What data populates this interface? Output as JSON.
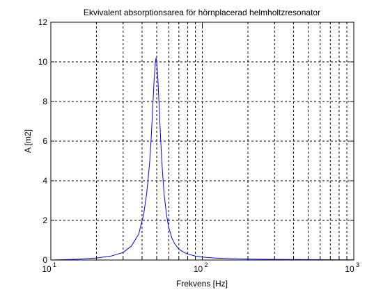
{
  "chart_data": {
    "type": "line",
    "title": "Ekvivalent absorptionsarea för hörnplacerad helmholtzresonator",
    "xlabel": "Frekvens [Hz]",
    "ylabel": "A [m2]",
    "xscale": "log",
    "xlim": [
      10,
      1000
    ],
    "ylim": [
      0,
      12
    ],
    "grid": true,
    "grid_style": "dashed",
    "x_ticks": [
      {
        "value": 10,
        "base": "10",
        "exp": "1"
      },
      {
        "value": 100,
        "base": "10",
        "exp": "2"
      },
      {
        "value": 1000,
        "base": "10",
        "exp": "3"
      }
    ],
    "y_ticks": [
      {
        "value": 0,
        "label": "0"
      },
      {
        "value": 2,
        "label": "2"
      },
      {
        "value": 4,
        "label": "4"
      },
      {
        "value": 6,
        "label": "6"
      },
      {
        "value": 8,
        "label": "8"
      },
      {
        "value": 10,
        "label": "10"
      },
      {
        "value": 12,
        "label": "12"
      }
    ],
    "series": [
      {
        "color": "#0000ff",
        "x": [
          10,
          15,
          20,
          25,
          30,
          34,
          38,
          41,
          43,
          45,
          46,
          47,
          48,
          49,
          49.5,
          50,
          51,
          52,
          53,
          54,
          55,
          56,
          58,
          60,
          63,
          66,
          70,
          75,
          80,
          90,
          100,
          120,
          150,
          200,
          300,
          500,
          700,
          1000
        ],
        "y": [
          0.0,
          0.04,
          0.1,
          0.2,
          0.38,
          0.7,
          1.3,
          2.3,
          3.4,
          5.0,
          6.2,
          7.6,
          9.0,
          10.0,
          10.2,
          10.0,
          9.0,
          7.6,
          6.2,
          5.0,
          4.1,
          3.3,
          2.3,
          1.65,
          1.1,
          0.8,
          0.55,
          0.4,
          0.3,
          0.2,
          0.15,
          0.1,
          0.07,
          0.05,
          0.03,
          0.02,
          0.015,
          0.01
        ]
      }
    ],
    "colors": {
      "line": "#0000ff",
      "grid": "#000000",
      "axes": "#000000",
      "background": "#ffffff"
    }
  }
}
